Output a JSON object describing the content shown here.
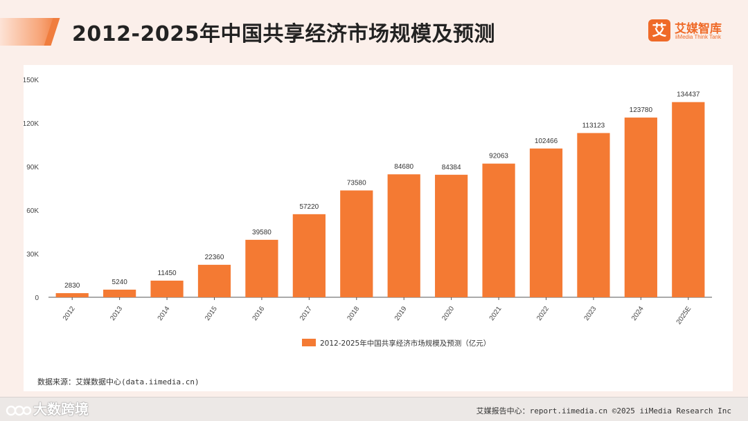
{
  "header": {
    "title": "2012-2025年中国共享经济市场规模及预测"
  },
  "logo": {
    "mark": "艾",
    "name": "艾媒智库",
    "subtitle": "iiMedia Think Tank"
  },
  "source": "数据来源：艾媒数据中心(data.iimedia.cn)",
  "footer": {
    "text": "艾媒报告中心：report.iimedia.cn  ©2025 iiMedia Research Inc"
  },
  "watermark": {
    "text": "大数跨境"
  },
  "colors": {
    "bar": "#f47a33",
    "accent": "#ef6a28",
    "axis": "#555555"
  },
  "chart_data": {
    "type": "bar",
    "title": "",
    "categories": [
      "2012",
      "2013",
      "2014",
      "2015",
      "2016",
      "2017",
      "2018",
      "2019",
      "2020",
      "2021",
      "2022",
      "2023",
      "2024",
      "2025E"
    ],
    "series": [
      {
        "name": "2012-2025年中国共享经济市场规模及预测（亿元）",
        "values": [
          2830,
          5240,
          11450,
          22360,
          39580,
          57220,
          73580,
          84680,
          84384,
          92063,
          102466,
          113123,
          123780,
          134437
        ],
        "data_labels": [
          "2830",
          "5240",
          "11450",
          "22360",
          "39580",
          "57220",
          "73580",
          "84680",
          "84384",
          "92063",
          "102466",
          "113123",
          "123780",
          "134437"
        ]
      }
    ],
    "ylim": [
      0,
      150000
    ],
    "yticks": [
      0,
      30000,
      60000,
      90000,
      120000,
      150000
    ],
    "ytick_labels": [
      "0",
      "30K",
      "60K",
      "90K",
      "120K",
      "150K"
    ],
    "xlabel": "",
    "ylabel": "",
    "grid": false,
    "legend_position": "bottom-center"
  }
}
